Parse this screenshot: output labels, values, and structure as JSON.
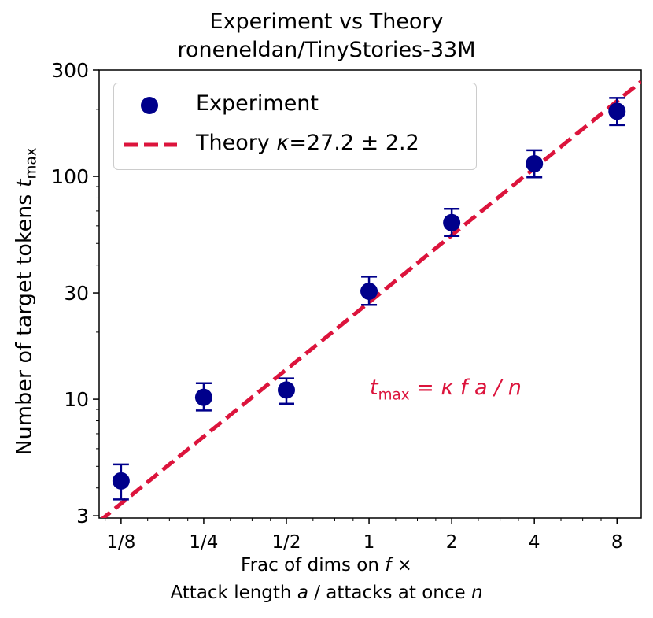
{
  "chart_data": {
    "type": "scatter",
    "title": "Experiment vs Theory",
    "subtitle": "roneneldan/TinyStories-33M",
    "xlabel_line1_prefix": "Frac of dims on ",
    "xlabel_line1_var": "f",
    "xlabel_line1_suffix": " ×",
    "xlabel_line2_prefix": "Attack length ",
    "xlabel_line2_var_a": "a",
    "xlabel_line2_mid": " / attacks at once ",
    "xlabel_line2_var_n": "n",
    "ylabel_text": "Number of target tokens ",
    "ylabel_var": "t",
    "ylabel_sub": "max",
    "x_scale": "log2",
    "y_scale": "log10",
    "xlim": [
      0.104,
      9.8
    ],
    "ylim": [
      2.93,
      300
    ],
    "x_ticks": [
      0.125,
      0.25,
      0.5,
      1,
      2,
      4,
      8
    ],
    "x_tick_labels": [
      "1/8",
      "1/4",
      "1/2",
      "1",
      "2",
      "4",
      "8"
    ],
    "y_ticks": [
      3,
      10,
      30,
      100,
      300
    ],
    "y_tick_labels": [
      "3",
      "10",
      "30",
      "100",
      "300"
    ],
    "series": [
      {
        "name": "Experiment",
        "kind": "errorbar",
        "color": "#00008b",
        "x": [
          0.125,
          0.25,
          0.5,
          1,
          2,
          4,
          8
        ],
        "y": [
          4.3,
          10.2,
          11.0,
          30.5,
          62.0,
          114.0,
          196.0
        ],
        "yerr_low": [
          3.55,
          8.9,
          9.55,
          26.5,
          54.0,
          99.0,
          170.0
        ],
        "yerr_high": [
          5.1,
          11.8,
          12.4,
          35.5,
          71.5,
          131.0,
          225.0
        ]
      },
      {
        "name": "Theory κ=27.2 ± 2.2",
        "legend_prefix": "Theory ",
        "legend_var": "κ",
        "legend_suffix": "=27.2 ± 2.2",
        "kind": "line",
        "style": "dashed",
        "color": "#dc143c",
        "kappa": 27.2,
        "kappa_err": 2.2
      }
    ],
    "annotation": {
      "var_t": "t",
      "sub": "max",
      "rest": " = κ f a / n",
      "color": "#dc143c"
    },
    "legend_position": "top-left",
    "grid": false
  }
}
